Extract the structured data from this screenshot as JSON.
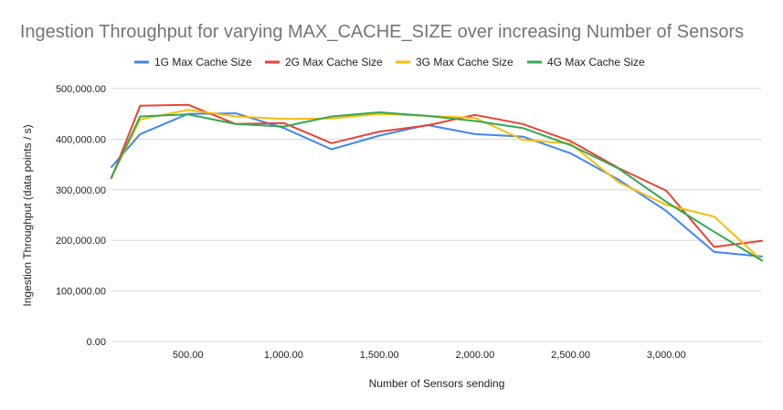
{
  "chart_data": {
    "type": "line",
    "title": "Ingestion Throughput for varying MAX_CACHE_SIZE over increasing Number of Sensors",
    "xlabel": "Number of Sensors sending",
    "ylabel": "Ingestion Throughput (data points / s)",
    "xlim": [
      100,
      3500
    ],
    "ylim": [
      0,
      500000
    ],
    "x_ticks": [
      500,
      1000,
      1500,
      2000,
      2500,
      3000
    ],
    "x_tick_labels": [
      "500.00",
      "1,000.00",
      "1,500.00",
      "2,000.00",
      "2,500.00",
      "3,000.00"
    ],
    "y_ticks": [
      0,
      100000,
      200000,
      300000,
      400000,
      500000
    ],
    "y_tick_labels": [
      "0.00",
      "100,000.00",
      "200,000.00",
      "300,000.00",
      "400,000.00",
      "500,000.00"
    ],
    "grid": true,
    "legend_position": "top",
    "x": [
      100,
      250,
      500,
      750,
      1000,
      1250,
      1500,
      1750,
      2000,
      2250,
      2500,
      2750,
      3000,
      3250,
      3500
    ],
    "series": [
      {
        "name": "1G Max Cache Size",
        "color": "#4285f4",
        "values": [
          345000,
          410000,
          450000,
          451000,
          422000,
          380000,
          407000,
          428000,
          410000,
          405000,
          372000,
          320000,
          258000,
          177000,
          168000
        ]
      },
      {
        "name": "2G Max Cache Size",
        "color": "#ea4335",
        "values": [
          323000,
          466000,
          468000,
          430000,
          432000,
          392000,
          415000,
          427000,
          448000,
          430000,
          396000,
          343000,
          298000,
          187000,
          199000
        ]
      },
      {
        "name": "3G Max Cache Size",
        "color": "#fbbc04",
        "values": [
          325000,
          439000,
          458000,
          445000,
          440000,
          441000,
          450000,
          446000,
          442000,
          399000,
          391000,
          315000,
          270000,
          247000,
          160000
        ]
      },
      {
        "name": "4G Max Cache Size",
        "color": "#34a853",
        "values": [
          325000,
          445000,
          449000,
          430000,
          425000,
          445000,
          453000,
          446000,
          436000,
          422000,
          388000,
          342000,
          276000,
          217000,
          160000
        ]
      }
    ]
  }
}
